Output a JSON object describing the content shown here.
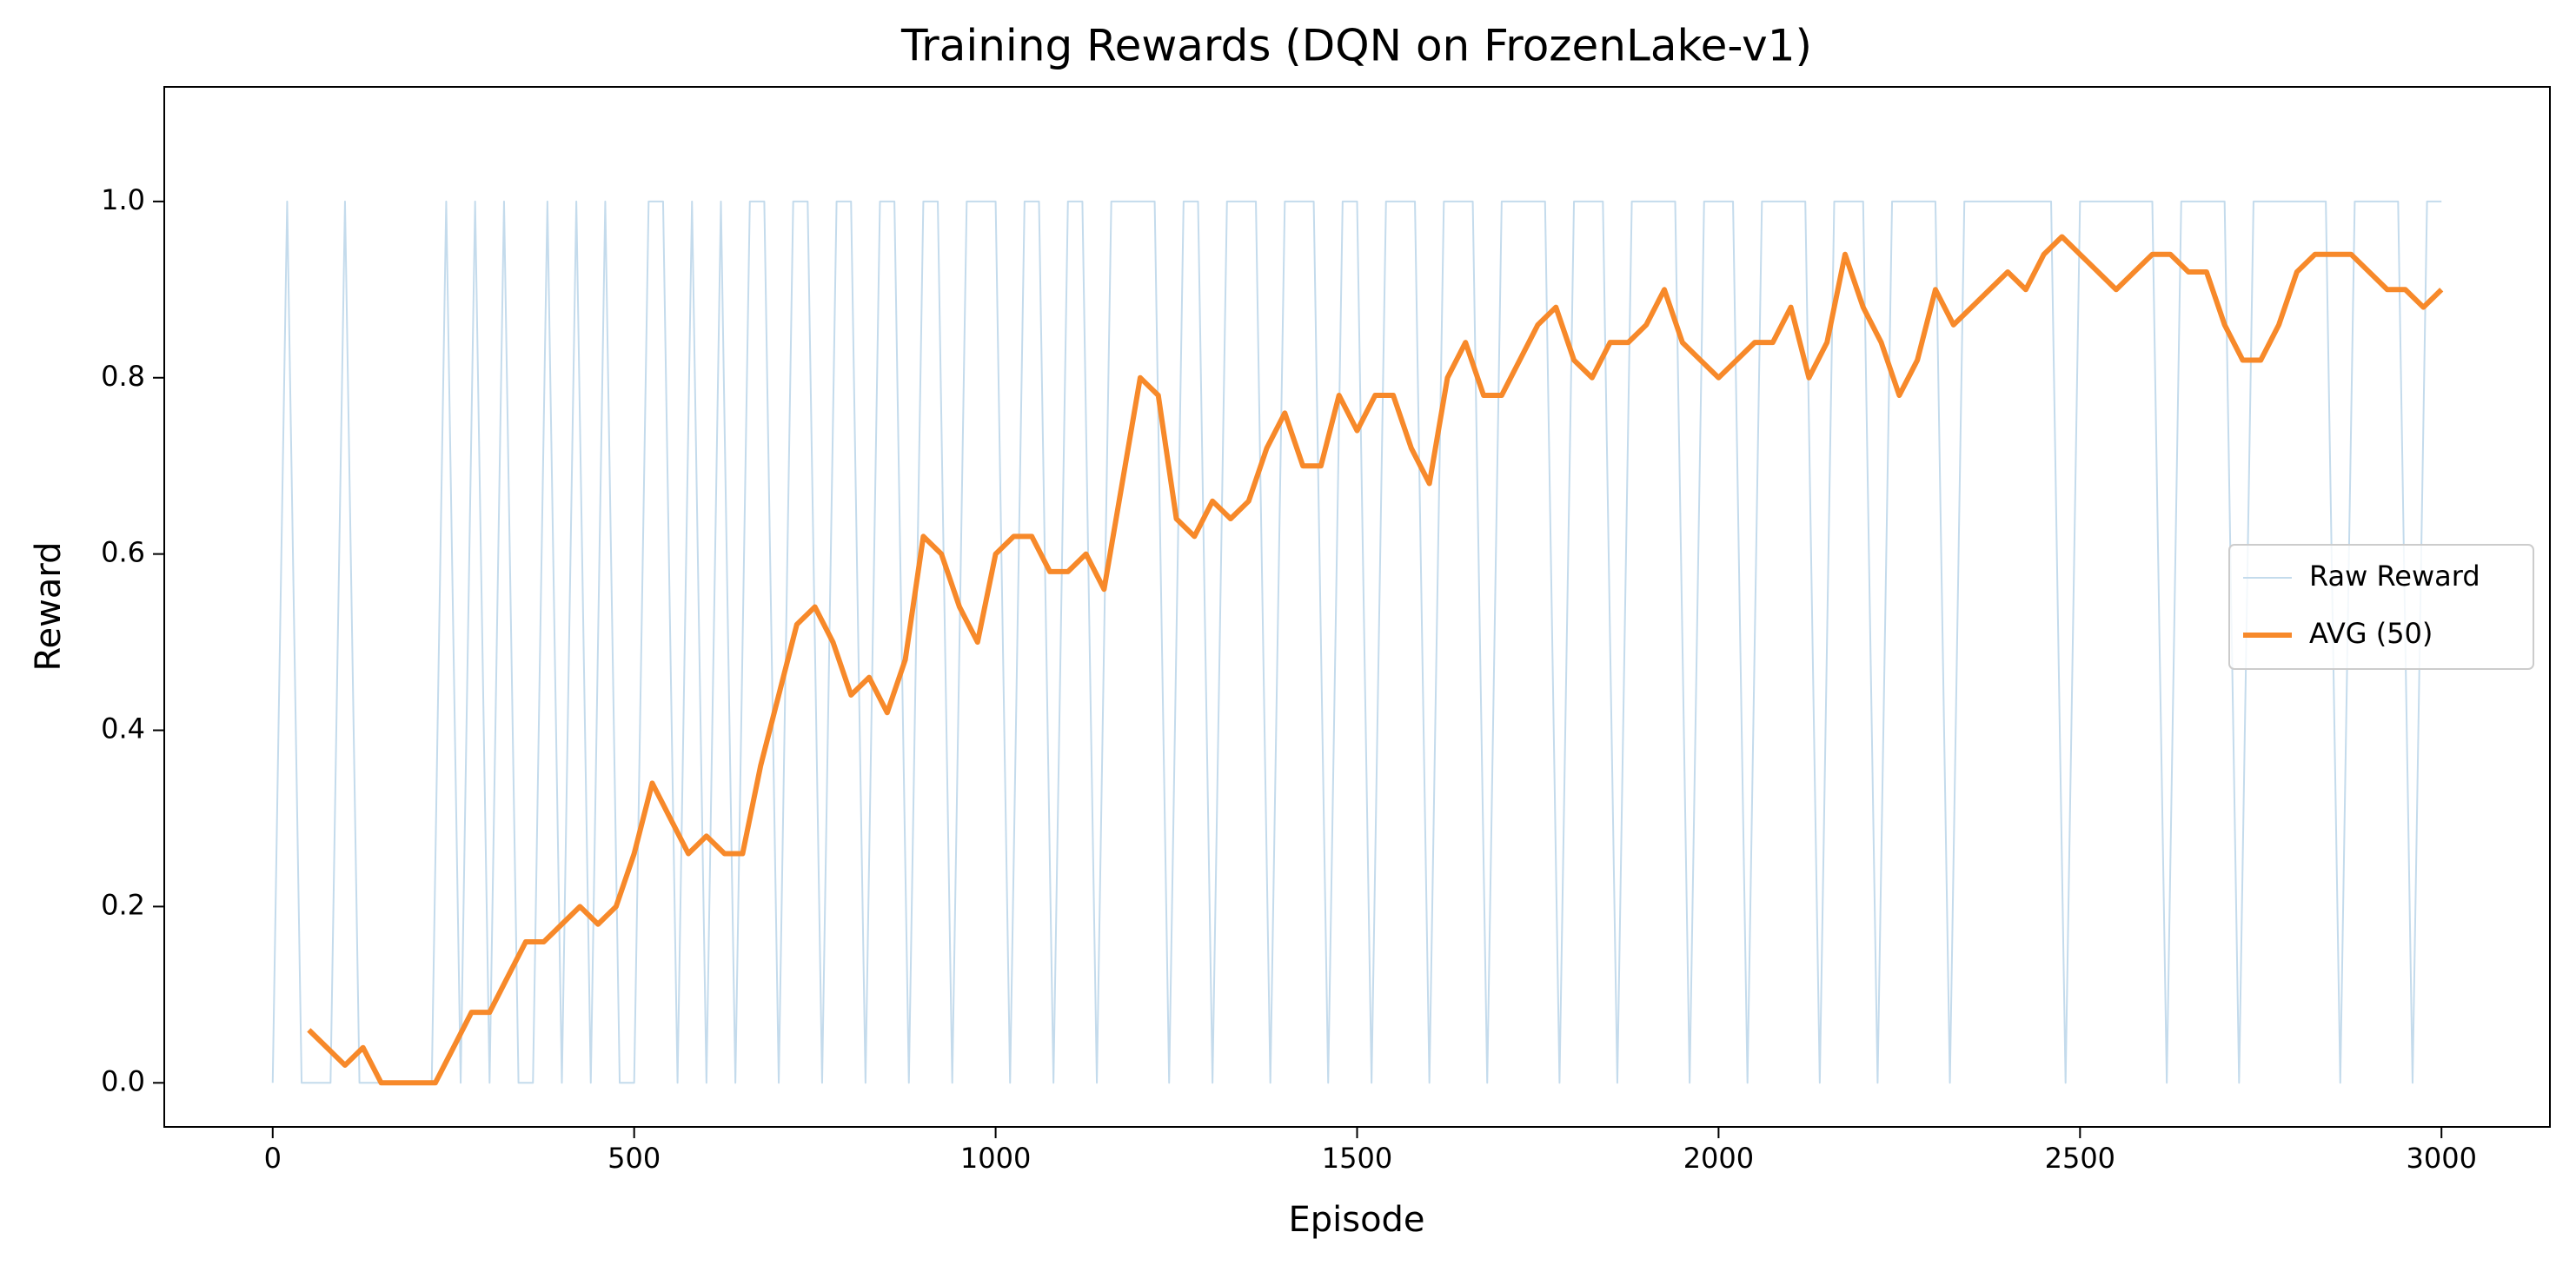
{
  "chart_data": {
    "type": "line",
    "title": "Training Rewards (DQN on FrozenLake-v1)",
    "x_label": "Episode",
    "y_label": "Reward",
    "xlim": [
      -150,
      3150
    ],
    "ylim": [
      -0.05,
      1.13
    ],
    "xticks": [
      0,
      500,
      1000,
      1500,
      2000,
      2500,
      3000
    ],
    "yticks": [
      {
        "value": 0,
        "label": "0.0"
      },
      {
        "value": 0.2,
        "label": "0.2"
      },
      {
        "value": 0.4,
        "label": "0.4"
      },
      {
        "value": 0.6,
        "label": "0.6"
      },
      {
        "value": 0.8,
        "label": "0.8"
      },
      {
        "value": 1,
        "label": "1.0"
      }
    ],
    "grid": false,
    "legend": "center right",
    "series": [
      {
        "name": "Raw Reward",
        "color": "#c4dbec",
        "width": 2,
        "x": [
          0,
          20,
          40,
          60,
          80,
          100,
          120,
          140,
          160,
          180,
          200,
          220,
          240,
          260,
          280,
          300,
          320,
          340,
          360,
          380,
          400,
          420,
          440,
          460,
          480,
          500,
          520,
          540,
          560,
          580,
          600,
          620,
          640,
          660,
          680,
          700,
          720,
          740,
          760,
          780,
          800,
          820,
          840,
          860,
          880,
          900,
          920,
          940,
          960,
          980,
          1000,
          1020,
          1040,
          1060,
          1080,
          1100,
          1120,
          1140,
          1160,
          1180,
          1200,
          1220,
          1240,
          1260,
          1280,
          1300,
          1320,
          1340,
          1360,
          1380,
          1400,
          1420,
          1440,
          1460,
          1480,
          1500,
          1520,
          1540,
          1560,
          1580,
          1600,
          1620,
          1640,
          1660,
          1680,
          1700,
          1720,
          1740,
          1760,
          1780,
          1800,
          1820,
          1840,
          1860,
          1880,
          1900,
          1920,
          1940,
          1960,
          1980,
          2000,
          2020,
          2040,
          2060,
          2080,
          2100,
          2120,
          2140,
          2160,
          2180,
          2200,
          2220,
          2240,
          2260,
          2280,
          2300,
          2320,
          2340,
          2360,
          2380,
          2400,
          2420,
          2440,
          2460,
          2480,
          2500,
          2520,
          2540,
          2560,
          2580,
          2600,
          2620,
          2640,
          2660,
          2680,
          2700,
          2720,
          2740,
          2760,
          2780,
          2800,
          2820,
          2840,
          2860,
          2880,
          2900,
          2920,
          2940,
          2960,
          2980,
          3000
        ],
        "values": [
          0,
          1,
          0,
          0,
          0,
          1,
          0,
          0,
          0,
          0,
          0,
          0,
          1,
          0,
          1,
          0,
          1,
          0,
          0,
          1,
          0,
          1,
          0,
          1,
          0,
          0,
          1,
          1,
          0,
          1,
          0,
          1,
          0,
          1,
          1,
          0,
          1,
          1,
          0,
          1,
          1,
          0,
          1,
          1,
          0,
          1,
          1,
          0,
          1,
          1,
          1,
          0,
          1,
          1,
          0,
          1,
          1,
          0,
          1,
          1,
          1,
          1,
          0,
          1,
          1,
          0,
          1,
          1,
          1,
          0,
          1,
          1,
          1,
          0,
          1,
          1,
          0,
          1,
          1,
          1,
          0,
          1,
          1,
          1,
          0,
          1,
          1,
          1,
          1,
          0,
          1,
          1,
          1,
          0,
          1,
          1,
          1,
          1,
          0,
          1,
          1,
          1,
          0,
          1,
          1,
          1,
          1,
          0,
          1,
          1,
          1,
          0,
          1,
          1,
          1,
          1,
          0,
          1,
          1,
          1,
          1,
          1,
          1,
          1,
          0,
          1,
          1,
          1,
          1,
          1,
          1,
          0,
          1,
          1,
          1,
          1,
          0,
          1,
          1,
          1,
          1,
          1,
          1,
          0,
          1,
          1,
          1,
          1,
          0,
          1,
          1
        ]
      },
      {
        "name": "AVG (50)",
        "color": "#f7892a",
        "width": 6,
        "x": [
          50,
          75,
          100,
          125,
          150,
          175,
          200,
          225,
          250,
          275,
          300,
          325,
          350,
          375,
          400,
          425,
          450,
          475,
          500,
          525,
          550,
          575,
          600,
          625,
          650,
          675,
          700,
          725,
          750,
          775,
          800,
          825,
          850,
          875,
          900,
          925,
          950,
          975,
          1000,
          1025,
          1050,
          1075,
          1100,
          1125,
          1150,
          1175,
          1200,
          1225,
          1250,
          1275,
          1300,
          1325,
          1350,
          1375,
          1400,
          1425,
          1450,
          1475,
          1500,
          1525,
          1550,
          1575,
          1600,
          1625,
          1650,
          1675,
          1700,
          1725,
          1750,
          1775,
          1800,
          1825,
          1850,
          1875,
          1900,
          1925,
          1950,
          1975,
          2000,
          2025,
          2050,
          2075,
          2100,
          2125,
          2150,
          2175,
          2200,
          2225,
          2250,
          2275,
          2300,
          2325,
          2350,
          2375,
          2400,
          2425,
          2450,
          2475,
          2500,
          2525,
          2550,
          2575,
          2600,
          2625,
          2650,
          2675,
          2700,
          2725,
          2750,
          2775,
          2800,
          2825,
          2850,
          2875,
          2900,
          2925,
          2950,
          2975,
          3000
        ],
        "values": [
          0.06,
          0.04,
          0.02,
          0.04,
          0,
          0,
          0,
          0,
          0.04,
          0.08,
          0.08,
          0.12,
          0.16,
          0.16,
          0.18,
          0.2,
          0.18,
          0.2,
          0.26,
          0.34,
          0.3,
          0.26,
          0.28,
          0.26,
          0.26,
          0.36,
          0.44,
          0.52,
          0.54,
          0.5,
          0.44,
          0.46,
          0.42,
          0.48,
          0.62,
          0.6,
          0.54,
          0.5,
          0.6,
          0.62,
          0.62,
          0.58,
          0.58,
          0.6,
          0.56,
          0.68,
          0.8,
          0.78,
          0.64,
          0.62,
          0.66,
          0.64,
          0.66,
          0.72,
          0.76,
          0.7,
          0.7,
          0.78,
          0.74,
          0.78,
          0.78,
          0.72,
          0.68,
          0.8,
          0.84,
          0.78,
          0.78,
          0.82,
          0.86,
          0.88,
          0.82,
          0.8,
          0.84,
          0.84,
          0.86,
          0.9,
          0.84,
          0.82,
          0.8,
          0.82,
          0.84,
          0.84,
          0.88,
          0.8,
          0.84,
          0.94,
          0.88,
          0.84,
          0.78,
          0.82,
          0.9,
          0.86,
          0.88,
          0.9,
          0.92,
          0.9,
          0.94,
          0.96,
          0.94,
          0.92,
          0.9,
          0.92,
          0.94,
          0.94,
          0.92,
          0.92,
          0.86,
          0.82,
          0.82,
          0.86,
          0.92,
          0.94,
          0.94,
          0.94,
          0.92,
          0.9,
          0.9,
          0.88,
          0.9
        ]
      }
    ]
  }
}
